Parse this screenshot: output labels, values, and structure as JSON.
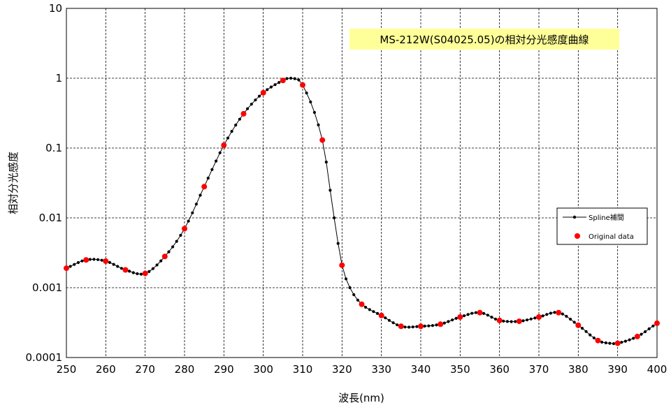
{
  "chart_data": {
    "type": "line",
    "title": "MS-212W(S04025.05)の相対分光感度曲線",
    "xlabel": "波長(nm)",
    "ylabel": "相対分光感度",
    "xlim": [
      250,
      400
    ],
    "ylim": [
      0.0001,
      10
    ],
    "y_scale": "log",
    "grid": true,
    "legend_position": "right",
    "x_ticks": [
      250,
      260,
      270,
      280,
      290,
      300,
      310,
      320,
      330,
      340,
      350,
      360,
      370,
      380,
      390,
      400
    ],
    "y_ticks": [
      {
        "value": 0.0001,
        "label": "0.0001"
      },
      {
        "value": 0.001,
        "label": "0.001"
      },
      {
        "value": 0.01,
        "label": "0.01"
      },
      {
        "value": 0.1,
        "label": "0.1"
      },
      {
        "value": 1,
        "label": "1"
      },
      {
        "value": 10,
        "label": "10"
      }
    ],
    "series": [
      {
        "name": "Spline補間",
        "color": "#000000",
        "marker": "small-dot",
        "x": [
          250,
          255,
          260,
          265,
          270,
          275,
          280,
          285,
          290,
          295,
          300,
          305,
          307,
          310,
          315,
          318,
          320,
          322,
          325,
          330,
          335,
          340,
          345,
          350,
          355,
          360,
          365,
          370,
          375,
          380,
          385,
          388,
          390,
          395,
          400
        ],
        "y": [
          0.0019,
          0.0025,
          0.0024,
          0.0018,
          0.0016,
          0.0028,
          0.007,
          0.028,
          0.11,
          0.31,
          0.62,
          0.93,
          1.0,
          0.8,
          0.13,
          0.01,
          0.0021,
          0.001,
          0.00058,
          0.0004,
          0.00028,
          0.00028,
          0.0003,
          0.00038,
          0.00044,
          0.00034,
          0.00033,
          0.00038,
          0.00044,
          0.00029,
          0.000175,
          0.00016,
          0.00016,
          0.0002,
          0.00031
        ]
      },
      {
        "name": "Original data",
        "color": "#ff0000",
        "marker": "dot",
        "x": [
          250,
          255,
          260,
          265,
          270,
          275,
          280,
          285,
          290,
          295,
          300,
          305,
          310,
          315,
          320,
          325,
          330,
          335,
          340,
          345,
          350,
          355,
          360,
          365,
          370,
          375,
          380,
          385,
          390,
          395,
          400
        ],
        "y": [
          0.0019,
          0.0025,
          0.0024,
          0.0018,
          0.0016,
          0.0028,
          0.007,
          0.028,
          0.11,
          0.31,
          0.62,
          0.93,
          0.8,
          0.13,
          0.0021,
          0.00058,
          0.0004,
          0.00028,
          0.00028,
          0.0003,
          0.00038,
          0.00044,
          0.00034,
          0.00033,
          0.00038,
          0.00044,
          0.00029,
          0.000175,
          0.00016,
          0.0002,
          0.00031
        ]
      }
    ]
  }
}
